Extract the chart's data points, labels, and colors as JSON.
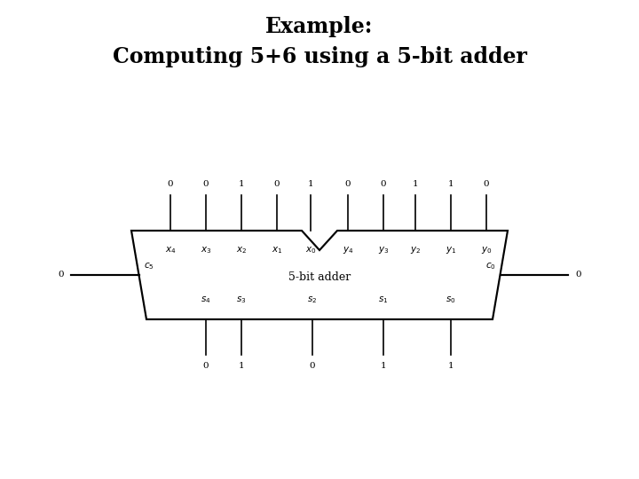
{
  "title_line1": "Example:",
  "title_line2": "Computing 5+6 using a 5-bit adder",
  "title_fontsize": 17,
  "bg_color": "#ffffff",
  "text_color": "#000000",
  "adder_label": "5-bit adder",
  "adder_label_fontsize": 9,
  "x_labels": [
    "x_{4}",
    "x_{3}",
    "x_{2}",
    "x_{1}",
    "x_{0}"
  ],
  "y_labels": [
    "y_{4}",
    "y_{3}",
    "y_{2}",
    "y_{1}",
    "y_{0}"
  ],
  "s_labels": [
    "s_{4}",
    "s_{3}",
    "s_{2}",
    "s_{1}",
    "s_{0}"
  ],
  "x_values": [
    "0",
    "0",
    "1",
    "0",
    "1"
  ],
  "y_values": [
    "0",
    "0",
    "1",
    "1",
    "0"
  ],
  "s_values": [
    "0",
    "1",
    "0",
    "1",
    "1"
  ],
  "c5_label": "c_{5}",
  "c0_label": "c_{0}",
  "c5_value": "0",
  "c0_value": "0",
  "io_fontsize": 7.5,
  "val_fontsize": 7.5,
  "pin_label_fontsize": 7.5,
  "lw": 1.2
}
